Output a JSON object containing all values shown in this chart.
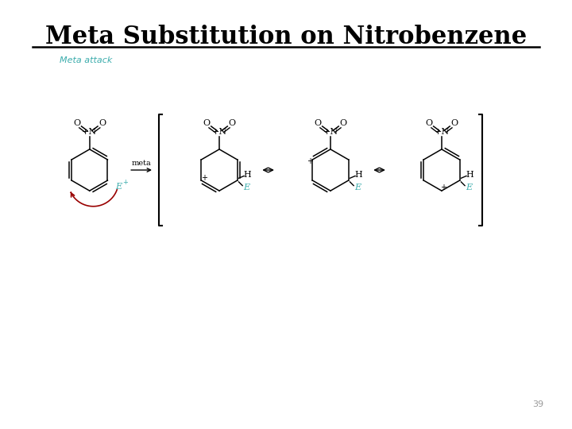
{
  "title": "Meta Substitution on Nitrobenzene",
  "subtitle": "Meta attack",
  "subtitle_color": "#3aacac",
  "page_number": "39",
  "background_color": "#ffffff",
  "title_fontsize": 22,
  "title_font": "serif",
  "subtitle_fontsize": 8,
  "E_color": "#3aacac",
  "arrow_color": "#990000"
}
